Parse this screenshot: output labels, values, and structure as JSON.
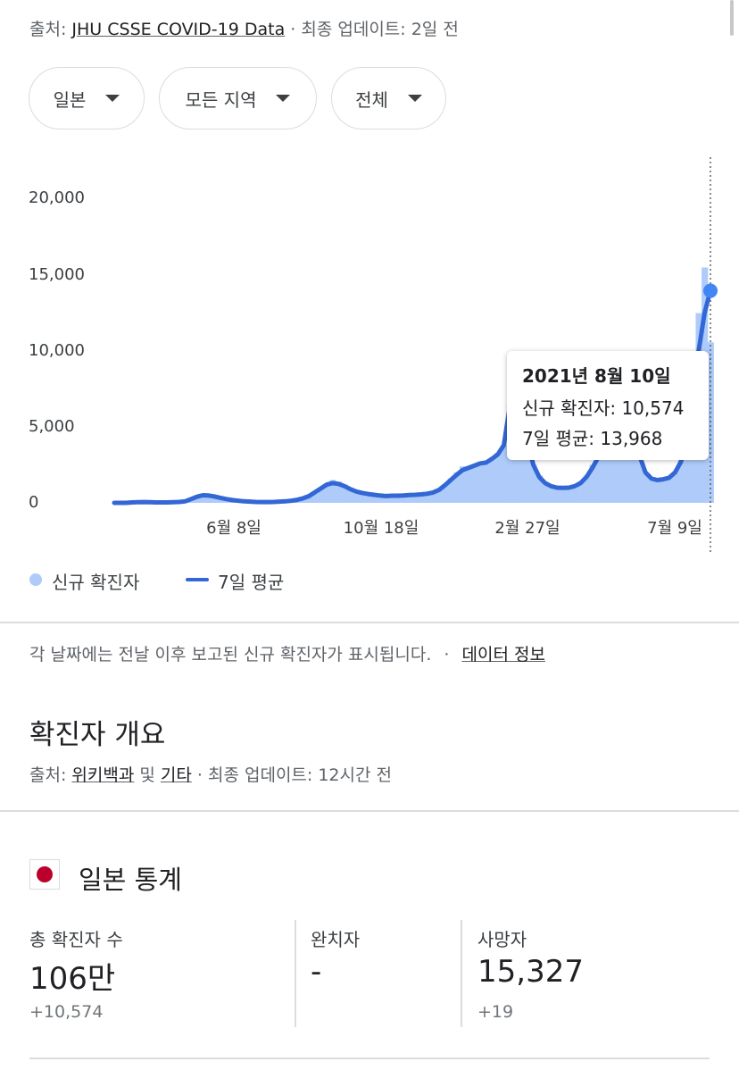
{
  "header": {
    "source_prefix": "출처: ",
    "source_link": "JHU CSSE COVID-19 Data",
    "update_text": " · 최종 업데이트: 2일 전"
  },
  "filters": [
    {
      "label": "일본"
    },
    {
      "label": "모든 지역"
    },
    {
      "label": "전체"
    }
  ],
  "chart_data": {
    "type": "bar",
    "y_ticks": [
      "20,000",
      "15,000",
      "10,000",
      "5,000",
      "0"
    ],
    "ylim": [
      0,
      20000
    ],
    "x_ticks": [
      "6월 8일",
      "10월 18일",
      "2월 27일",
      "7월 9일"
    ],
    "series": [
      {
        "name": "신규 확진자",
        "color": "#aecbfa",
        "type": "bar",
        "values": [
          0,
          0,
          0,
          5,
          20,
          40,
          30,
          30,
          30,
          10,
          30,
          50,
          80,
          200,
          400,
          600,
          550,
          500,
          400,
          300,
          200,
          150,
          100,
          80,
          60,
          50,
          50,
          60,
          80,
          100,
          120,
          150,
          250,
          400,
          600,
          1000,
          1200,
          1500,
          1400,
          1200,
          900,
          700,
          600,
          550,
          500,
          450,
          400,
          500,
          450,
          500,
          600,
          500,
          550,
          600,
          700,
          900,
          1200,
          1600,
          2000,
          2400,
          2300,
          2500,
          2700,
          2600,
          3000,
          3300,
          3800,
          6500,
          7800,
          6000,
          4500,
          2500,
          1800,
          1300,
          1100,
          1000,
          950,
          1000,
          1200,
          1400,
          1800,
          2500,
          3200,
          3900,
          4300,
          4200,
          4400,
          4500,
          4300,
          3000,
          2000,
          1600,
          1500,
          1600,
          1700,
          2000,
          2800,
          4500,
          9000,
          12500,
          15500,
          10574
        ]
      },
      {
        "name": "7일 평균",
        "color": "#3367d6",
        "type": "line",
        "values": [
          0,
          0,
          0,
          30,
          40,
          50,
          40,
          30,
          30,
          30,
          40,
          60,
          100,
          250,
          400,
          500,
          480,
          420,
          330,
          250,
          180,
          140,
          100,
          80,
          60,
          50,
          50,
          60,
          80,
          100,
          140,
          200,
          300,
          450,
          700,
          950,
          1200,
          1300,
          1250,
          1100,
          900,
          750,
          650,
          580,
          530,
          480,
          450,
          470,
          470,
          480,
          520,
          530,
          560,
          600,
          680,
          850,
          1150,
          1500,
          1850,
          2150,
          2300,
          2450,
          2600,
          2650,
          2900,
          3200,
          3800,
          6300,
          6300,
          5500,
          4000,
          2500,
          1700,
          1300,
          1100,
          1000,
          980,
          1000,
          1100,
          1300,
          1700,
          2300,
          3000,
          3700,
          4200,
          4300,
          4400,
          4300,
          4200,
          3100,
          2000,
          1600,
          1500,
          1550,
          1650,
          2000,
          2700,
          4000,
          7000,
          10000,
          12500,
          13968
        ]
      }
    ],
    "tooltip": {
      "date": "2021년 8월 10일",
      "new_cases": "신규 확진자: 10,574",
      "avg": "7일 평균: 13,968"
    }
  },
  "legend": {
    "bars": "신규 확진자",
    "line": "7일 평균"
  },
  "notes": {
    "text": "각 날짜에는 전날 이후 보고된 신규 확진자가 표시됩니다.",
    "sep": " · ",
    "link": "데이터 정보"
  },
  "overview": {
    "title": "확진자 개요",
    "source_prefix": "출처: ",
    "source_link1": "위키백과",
    "mid": " 및 ",
    "source_link2": "기타",
    "update_text": " · 최종 업데이트: 12시간 전"
  },
  "stats": {
    "title": "일본 통계",
    "flag_color": "#bc002d",
    "columns": [
      {
        "label": "총 확진자 수",
        "value": "106만",
        "delta": "+10,574"
      },
      {
        "label": "완치자",
        "value": "-",
        "delta": ""
      },
      {
        "label": "사망자",
        "value": "15,327",
        "delta": "+19"
      }
    ]
  }
}
